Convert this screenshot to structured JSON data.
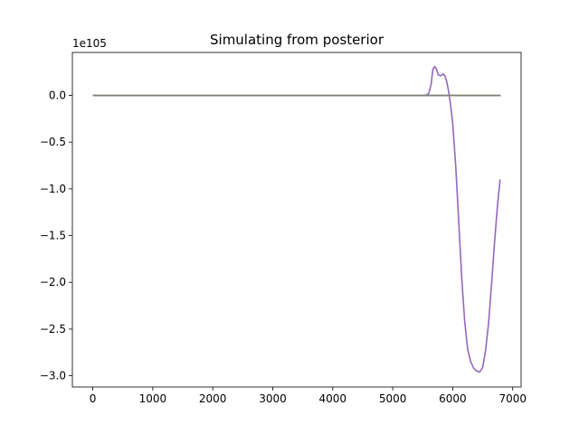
{
  "chart_data": {
    "type": "line",
    "title": "Simulating from posterior",
    "xlabel": "",
    "ylabel": "",
    "offset_label": "1e105",
    "xlim": [
      -340,
      7140
    ],
    "ylim": [
      -3.12,
      0.46
    ],
    "x_ticks": [
      0,
      1000,
      2000,
      3000,
      4000,
      5000,
      6000,
      7000
    ],
    "x_tick_labels": [
      "0",
      "1000",
      "2000",
      "3000",
      "4000",
      "5000",
      "6000",
      "7000"
    ],
    "y_ticks": [
      0.0,
      -0.5,
      -1.0,
      -1.5,
      -2.0,
      -2.5,
      -3.0
    ],
    "y_tick_labels": [
      "0.0",
      "−0.5",
      "−1.0",
      "−1.5",
      "−2.0",
      "−2.5",
      "−3.0"
    ],
    "grid": false,
    "series": [
      {
        "color": "#9467bd",
        "points": [
          [
            0,
            0
          ],
          [
            1000,
            0
          ],
          [
            2000,
            0
          ],
          [
            3000,
            0
          ],
          [
            4000,
            0
          ],
          [
            5000,
            0
          ],
          [
            5550,
            0
          ],
          [
            5600,
            0.02
          ],
          [
            5640,
            0.12
          ],
          [
            5670,
            0.28
          ],
          [
            5700,
            0.31
          ],
          [
            5730,
            0.28
          ],
          [
            5760,
            0.22
          ],
          [
            5800,
            0.21
          ],
          [
            5840,
            0.23
          ],
          [
            5870,
            0.21
          ],
          [
            5900,
            0.15
          ],
          [
            5930,
            0.05
          ],
          [
            5960,
            -0.08
          ],
          [
            6000,
            -0.3
          ],
          [
            6050,
            -0.75
          ],
          [
            6100,
            -1.35
          ],
          [
            6150,
            -1.95
          ],
          [
            6200,
            -2.42
          ],
          [
            6250,
            -2.72
          ],
          [
            6300,
            -2.85
          ],
          [
            6350,
            -2.92
          ],
          [
            6400,
            -2.95
          ],
          [
            6450,
            -2.96
          ],
          [
            6500,
            -2.91
          ],
          [
            6550,
            -2.72
          ],
          [
            6600,
            -2.42
          ],
          [
            6650,
            -2.0
          ],
          [
            6700,
            -1.55
          ],
          [
            6750,
            -1.15
          ],
          [
            6790,
            -0.9
          ]
        ]
      },
      {
        "color": "#17becf",
        "points": [
          [
            0,
            0
          ],
          [
            6800,
            0
          ]
        ]
      },
      {
        "color": "#bcbd22",
        "points": [
          [
            0,
            0
          ],
          [
            6800,
            0
          ]
        ]
      },
      {
        "color": "#7f7f7f",
        "points": [
          [
            0,
            0
          ],
          [
            6800,
            0
          ]
        ]
      }
    ]
  }
}
